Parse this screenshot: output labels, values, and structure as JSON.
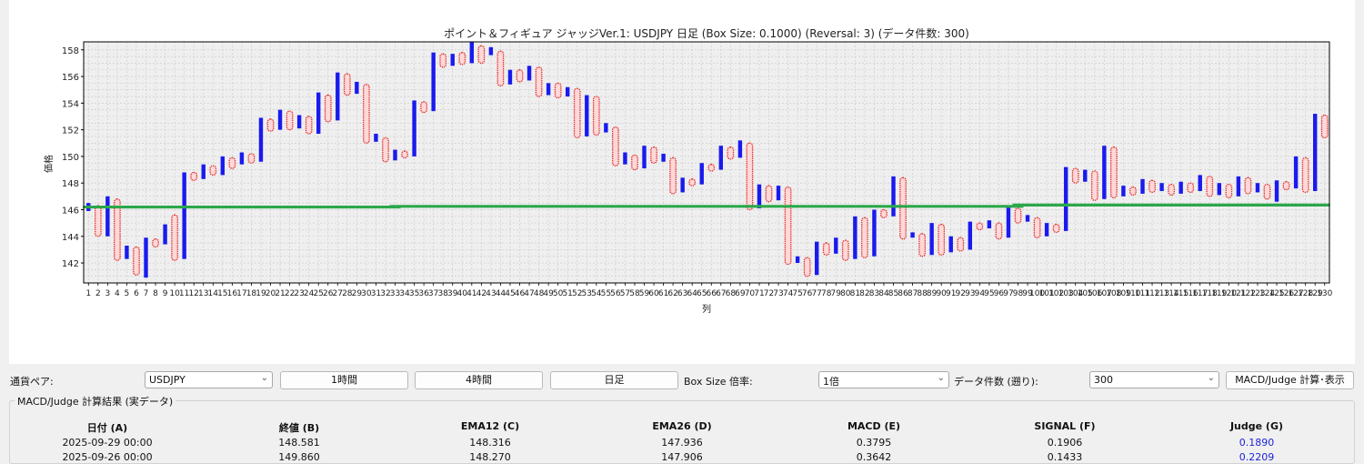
{
  "chart": {
    "title": "ポイント＆フィギュア ジャッジVer.1: USDJPY 日足 (Box Size: 0.1000) (Reversal: 3) (データ件数: 300)",
    "xlabel": "列",
    "ylabel": "価格"
  },
  "chart_data": {
    "type": "point-and-figure",
    "title": "ポイント＆フィギュア ジャッジVer.1: USDJPY 日足 (Box Size: 0.1000) (Reversal: 3) (データ件数: 300)",
    "xlabel": "列",
    "ylabel": "価格",
    "xlim": [
      0.5,
      130.5
    ],
    "ylim": [
      140.5,
      158.6
    ],
    "yticks": [
      142,
      144,
      146,
      148,
      150,
      152,
      154,
      156,
      158
    ],
    "grid": true,
    "box_size": 0.1,
    "reversal": 3,
    "x_symbol_color": "#1a1aee",
    "o_symbol_color": "#e03030",
    "reference_line": {
      "color": "#2aa84a",
      "segments": [
        [
          1,
          33,
          146.2
        ],
        [
          33,
          98,
          146.25
        ],
        [
          98,
          130,
          146.35
        ]
      ]
    },
    "columns": [
      {
        "col": 1,
        "type": "X",
        "low": 145.9,
        "high": 146.5
      },
      {
        "col": 2,
        "type": "O",
        "low": 144.0,
        "high": 146.3
      },
      {
        "col": 3,
        "type": "X",
        "low": 144.0,
        "high": 147.0
      },
      {
        "col": 4,
        "type": "O",
        "low": 142.2,
        "high": 146.8
      },
      {
        "col": 5,
        "type": "X",
        "low": 142.3,
        "high": 143.3
      },
      {
        "col": 6,
        "type": "O",
        "low": 141.1,
        "high": 143.2
      },
      {
        "col": 7,
        "type": "X",
        "low": 140.9,
        "high": 143.9
      },
      {
        "col": 8,
        "type": "O",
        "low": 143.2,
        "high": 143.8
      },
      {
        "col": 9,
        "type": "X",
        "low": 143.4,
        "high": 144.9
      },
      {
        "col": 10,
        "type": "O",
        "low": 142.2,
        "high": 145.6
      },
      {
        "col": 11,
        "type": "X",
        "low": 142.3,
        "high": 148.8
      },
      {
        "col": 12,
        "type": "O",
        "low": 148.2,
        "high": 148.8
      },
      {
        "col": 13,
        "type": "X",
        "low": 148.3,
        "high": 149.4
      },
      {
        "col": 14,
        "type": "O",
        "low": 148.6,
        "high": 149.3
      },
      {
        "col": 15,
        "type": "X",
        "low": 148.6,
        "high": 150.0
      },
      {
        "col": 16,
        "type": "O",
        "low": 149.1,
        "high": 149.9
      },
      {
        "col": 17,
        "type": "X",
        "low": 149.4,
        "high": 150.3
      },
      {
        "col": 18,
        "type": "O",
        "low": 149.5,
        "high": 150.2
      },
      {
        "col": 19,
        "type": "X",
        "low": 149.6,
        "high": 152.9
      },
      {
        "col": 20,
        "type": "O",
        "low": 151.9,
        "high": 152.8
      },
      {
        "col": 21,
        "type": "X",
        "low": 152.0,
        "high": 153.5
      },
      {
        "col": 22,
        "type": "O",
        "low": 152.0,
        "high": 153.4
      },
      {
        "col": 23,
        "type": "X",
        "low": 152.1,
        "high": 153.1
      },
      {
        "col": 24,
        "type": "O",
        "low": 151.7,
        "high": 153.0
      },
      {
        "col": 25,
        "type": "X",
        "low": 151.7,
        "high": 154.8
      },
      {
        "col": 26,
        "type": "O",
        "low": 152.6,
        "high": 154.6
      },
      {
        "col": 27,
        "type": "X",
        "low": 152.7,
        "high": 156.3
      },
      {
        "col": 28,
        "type": "O",
        "low": 154.6,
        "high": 156.2
      },
      {
        "col": 29,
        "type": "X",
        "low": 154.7,
        "high": 155.6
      },
      {
        "col": 30,
        "type": "O",
        "low": 151.0,
        "high": 155.4
      },
      {
        "col": 31,
        "type": "X",
        "low": 151.1,
        "high": 151.7
      },
      {
        "col": 32,
        "type": "O",
        "low": 149.6,
        "high": 151.4
      },
      {
        "col": 33,
        "type": "X",
        "low": 149.7,
        "high": 150.5
      },
      {
        "col": 34,
        "type": "O",
        "low": 149.9,
        "high": 150.4
      },
      {
        "col": 35,
        "type": "X",
        "low": 150.0,
        "high": 154.2
      },
      {
        "col": 36,
        "type": "O",
        "low": 153.3,
        "high": 154.1
      },
      {
        "col": 37,
        "type": "X",
        "low": 153.4,
        "high": 157.8
      },
      {
        "col": 38,
        "type": "O",
        "low": 156.7,
        "high": 157.7
      },
      {
        "col": 39,
        "type": "X",
        "low": 156.8,
        "high": 157.7
      },
      {
        "col": 40,
        "type": "O",
        "low": 156.9,
        "high": 157.8
      },
      {
        "col": 41,
        "type": "X",
        "low": 157.0,
        "high": 158.6
      },
      {
        "col": 42,
        "type": "O",
        "low": 157.0,
        "high": 158.3
      },
      {
        "col": 43,
        "type": "X",
        "low": 157.6,
        "high": 158.2
      },
      {
        "col": 44,
        "type": "O",
        "low": 155.3,
        "high": 157.9
      },
      {
        "col": 45,
        "type": "X",
        "low": 155.4,
        "high": 156.5
      },
      {
        "col": 46,
        "type": "O",
        "low": 155.6,
        "high": 156.5
      },
      {
        "col": 47,
        "type": "X",
        "low": 155.7,
        "high": 156.8
      },
      {
        "col": 48,
        "type": "O",
        "low": 154.5,
        "high": 156.7
      },
      {
        "col": 49,
        "type": "X",
        "low": 154.6,
        "high": 155.5
      },
      {
        "col": 50,
        "type": "O",
        "low": 154.4,
        "high": 155.5
      },
      {
        "col": 51,
        "type": "X",
        "low": 154.5,
        "high": 155.2
      },
      {
        "col": 52,
        "type": "O",
        "low": 151.4,
        "high": 155.1
      },
      {
        "col": 53,
        "type": "X",
        "low": 151.5,
        "high": 154.6
      },
      {
        "col": 54,
        "type": "O",
        "low": 151.6,
        "high": 154.5
      },
      {
        "col": 55,
        "type": "X",
        "low": 151.8,
        "high": 152.5
      },
      {
        "col": 56,
        "type": "O",
        "low": 149.3,
        "high": 152.2
      },
      {
        "col": 57,
        "type": "X",
        "low": 149.4,
        "high": 150.3
      },
      {
        "col": 58,
        "type": "O",
        "low": 149.0,
        "high": 150.1
      },
      {
        "col": 59,
        "type": "X",
        "low": 149.1,
        "high": 150.8
      },
      {
        "col": 60,
        "type": "O",
        "low": 149.5,
        "high": 150.7
      },
      {
        "col": 61,
        "type": "X",
        "low": 149.6,
        "high": 150.2
      },
      {
        "col": 62,
        "type": "O",
        "low": 147.2,
        "high": 149.9
      },
      {
        "col": 63,
        "type": "X",
        "low": 147.3,
        "high": 148.4
      },
      {
        "col": 64,
        "type": "O",
        "low": 147.8,
        "high": 148.3
      },
      {
        "col": 65,
        "type": "X",
        "low": 147.9,
        "high": 149.5
      },
      {
        "col": 66,
        "type": "O",
        "low": 148.9,
        "high": 149.4
      },
      {
        "col": 67,
        "type": "X",
        "low": 149.0,
        "high": 150.8
      },
      {
        "col": 68,
        "type": "O",
        "low": 149.8,
        "high": 150.7
      },
      {
        "col": 69,
        "type": "X",
        "low": 149.9,
        "high": 151.2
      },
      {
        "col": 70,
        "type": "O",
        "low": 146.0,
        "high": 151.0
      },
      {
        "col": 71,
        "type": "X",
        "low": 146.1,
        "high": 147.9
      },
      {
        "col": 72,
        "type": "O",
        "low": 146.6,
        "high": 147.8
      },
      {
        "col": 73,
        "type": "X",
        "low": 146.7,
        "high": 147.8
      },
      {
        "col": 74,
        "type": "O",
        "low": 141.9,
        "high": 147.7
      },
      {
        "col": 75,
        "type": "X",
        "low": 142.0,
        "high": 142.5
      },
      {
        "col": 76,
        "type": "O",
        "low": 141.0,
        "high": 142.4
      },
      {
        "col": 77,
        "type": "X",
        "low": 141.1,
        "high": 143.6
      },
      {
        "col": 78,
        "type": "O",
        "low": 142.6,
        "high": 143.5
      },
      {
        "col": 79,
        "type": "X",
        "low": 142.7,
        "high": 143.9
      },
      {
        "col": 80,
        "type": "O",
        "low": 142.2,
        "high": 143.7
      },
      {
        "col": 81,
        "type": "X",
        "low": 142.3,
        "high": 145.5
      },
      {
        "col": 82,
        "type": "O",
        "low": 142.4,
        "high": 145.4
      },
      {
        "col": 83,
        "type": "X",
        "low": 142.5,
        "high": 146.0
      },
      {
        "col": 84,
        "type": "O",
        "low": 145.4,
        "high": 146.0
      },
      {
        "col": 85,
        "type": "X",
        "low": 145.5,
        "high": 148.5
      },
      {
        "col": 86,
        "type": "O",
        "low": 143.8,
        "high": 148.4
      },
      {
        "col": 87,
        "type": "X",
        "low": 143.9,
        "high": 144.3
      },
      {
        "col": 88,
        "type": "O",
        "low": 142.5,
        "high": 144.2
      },
      {
        "col": 89,
        "type": "X",
        "low": 142.6,
        "high": 145.0
      },
      {
        "col": 90,
        "type": "O",
        "low": 142.6,
        "high": 144.9
      },
      {
        "col": 91,
        "type": "X",
        "low": 142.8,
        "high": 144.0
      },
      {
        "col": 92,
        "type": "O",
        "low": 142.9,
        "high": 143.9
      },
      {
        "col": 93,
        "type": "X",
        "low": 143.0,
        "high": 145.1
      },
      {
        "col": 94,
        "type": "O",
        "low": 144.5,
        "high": 145.0
      },
      {
        "col": 95,
        "type": "X",
        "low": 144.6,
        "high": 145.2
      },
      {
        "col": 96,
        "type": "O",
        "low": 143.8,
        "high": 145.0
      },
      {
        "col": 97,
        "type": "X",
        "low": 143.9,
        "high": 146.2
      },
      {
        "col": 98,
        "type": "O",
        "low": 145.0,
        "high": 146.1
      },
      {
        "col": 99,
        "type": "X",
        "low": 145.1,
        "high": 145.6
      },
      {
        "col": 100,
        "type": "O",
        "low": 143.9,
        "high": 145.4
      },
      {
        "col": 101,
        "type": "X",
        "low": 144.0,
        "high": 145.0
      },
      {
        "col": 102,
        "type": "O",
        "low": 144.3,
        "high": 144.9
      },
      {
        "col": 103,
        "type": "X",
        "low": 144.4,
        "high": 149.2
      },
      {
        "col": 104,
        "type": "O",
        "low": 148.0,
        "high": 149.1
      },
      {
        "col": 105,
        "type": "X",
        "low": 148.1,
        "high": 149.0
      },
      {
        "col": 106,
        "type": "O",
        "low": 146.7,
        "high": 148.9
      },
      {
        "col": 107,
        "type": "X",
        "low": 146.8,
        "high": 150.8
      },
      {
        "col": 108,
        "type": "O",
        "low": 146.9,
        "high": 150.7
      },
      {
        "col": 109,
        "type": "X",
        "low": 147.0,
        "high": 147.8
      },
      {
        "col": 110,
        "type": "O",
        "low": 147.1,
        "high": 147.7
      },
      {
        "col": 111,
        "type": "X",
        "low": 147.2,
        "high": 148.3
      },
      {
        "col": 112,
        "type": "O",
        "low": 147.3,
        "high": 148.2
      },
      {
        "col": 113,
        "type": "X",
        "low": 147.4,
        "high": 148.0
      },
      {
        "col": 114,
        "type": "O",
        "low": 147.1,
        "high": 147.9
      },
      {
        "col": 115,
        "type": "X",
        "low": 147.2,
        "high": 148.1
      },
      {
        "col": 116,
        "type": "O",
        "low": 147.3,
        "high": 148.0
      },
      {
        "col": 117,
        "type": "X",
        "low": 147.4,
        "high": 148.6
      },
      {
        "col": 118,
        "type": "O",
        "low": 147.0,
        "high": 148.5
      },
      {
        "col": 119,
        "type": "X",
        "low": 147.1,
        "high": 148.0
      },
      {
        "col": 120,
        "type": "O",
        "low": 146.9,
        "high": 147.9
      },
      {
        "col": 121,
        "type": "X",
        "low": 147.0,
        "high": 148.5
      },
      {
        "col": 122,
        "type": "O",
        "low": 147.2,
        "high": 148.4
      },
      {
        "col": 123,
        "type": "X",
        "low": 147.3,
        "high": 148.0
      },
      {
        "col": 124,
        "type": "O",
        "low": 146.8,
        "high": 147.9
      },
      {
        "col": 125,
        "type": "X",
        "low": 146.6,
        "high": 148.2
      },
      {
        "col": 126,
        "type": "O",
        "low": 147.5,
        "high": 148.1
      },
      {
        "col": 127,
        "type": "X",
        "low": 147.6,
        "high": 150.0
      },
      {
        "col": 128,
        "type": "O",
        "low": 147.3,
        "high": 149.9
      },
      {
        "col": 129,
        "type": "X",
        "low": 147.4,
        "high": 153.2
      },
      {
        "col": 130,
        "type": "O",
        "low": 151.4,
        "high": 153.1
      }
    ]
  },
  "controls": {
    "pair_label": "通貨ペア:",
    "pair_value": "USDJPY",
    "btn_1h": "1時間",
    "btn_4h": "4時間",
    "btn_daily": "日足",
    "boxsize_label": "Box Size 倍率:",
    "boxsize_value": "1倍",
    "count_label": "データ件数 (遡り):",
    "count_value": "300",
    "calc_button": "MACD/Judge 計算･表示"
  },
  "results": {
    "title": "MACD/Judge 計算結果 (実データ)",
    "headers": [
      "日付 (A)",
      "終値 (B)",
      "EMA12 (C)",
      "EMA26 (D)",
      "MACD (E)",
      "SIGNAL (F)",
      "Judge (G)"
    ],
    "rows": [
      [
        "2025-09-29 00:00",
        "148.581",
        "148.316",
        "147.936",
        "0.3795",
        "0.1906",
        "0.1890"
      ],
      [
        "2025-09-26 00:00",
        "149.860",
        "148.270",
        "147.906",
        "0.3642",
        "0.1433",
        "0.2209"
      ]
    ],
    "judge_color": "#1f24d6"
  }
}
